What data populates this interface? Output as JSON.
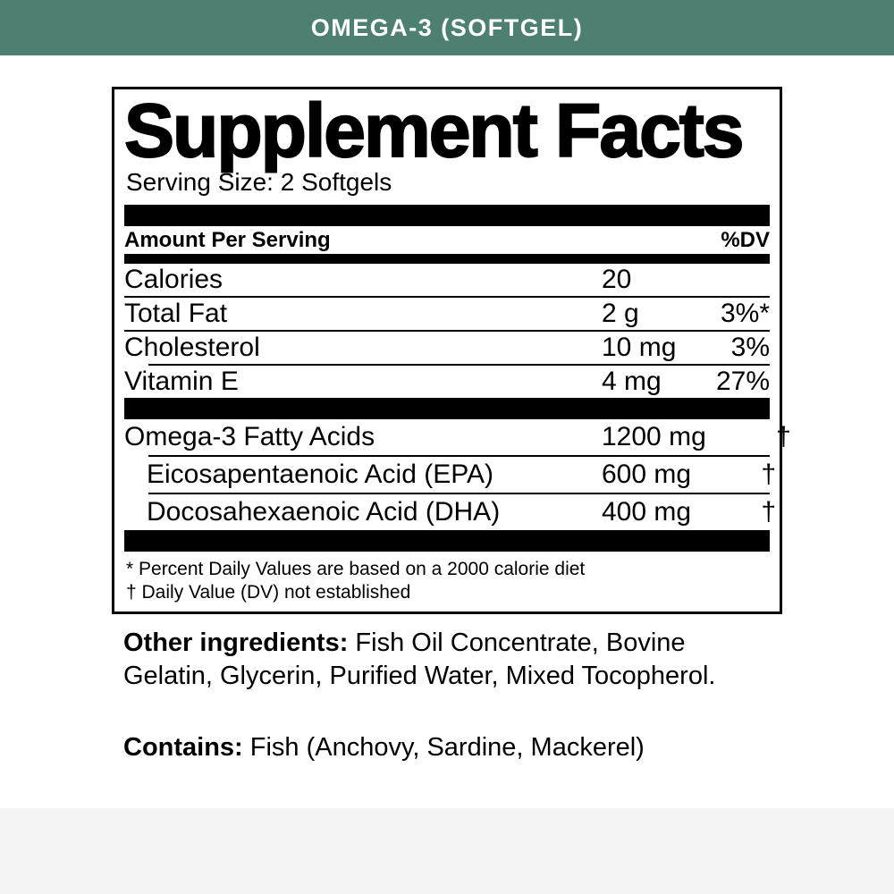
{
  "banner": {
    "title": "OMEGA-3 (SOFTGEL)"
  },
  "colors": {
    "banner_bg": "#4e8071",
    "banner_text": "#ffffff",
    "panel_border": "#000000",
    "footer_bg": "#f4f4f5"
  },
  "panel": {
    "title": "Supplement Facts",
    "serving_size": "Serving Size: 2 Softgels",
    "columns": {
      "amount_label": "Amount Per Serving",
      "dv_label": "%DV"
    },
    "rows": [
      {
        "name": "Calories",
        "amount": "20",
        "dv": ""
      },
      {
        "name": "Total Fat",
        "amount": "2 g",
        "dv": "3%*"
      },
      {
        "name": "Cholesterol",
        "amount": "10 mg",
        "dv": "3%"
      },
      {
        "name": "Vitamin E",
        "amount": "4 mg",
        "dv": "27%"
      },
      {
        "name": "Omega-3 Fatty Acids",
        "amount": "1200 mg",
        "dv": "†"
      },
      {
        "name": "Eicosapentaenoic Acid (EPA)",
        "amount": "600 mg",
        "dv": "†"
      },
      {
        "name": "Docosahexaenoic Acid (DHA)",
        "amount": "400 mg",
        "dv": "†"
      }
    ],
    "footnotes": [
      "* Percent Daily Values are based on a 2000 calorie diet",
      "† Daily Value (DV) not established"
    ]
  },
  "other_ingredients": {
    "label": "Other ingredients:",
    "text": " Fish Oil Concentrate, Bovine Gelatin, Glycerin, Purified Water, Mixed Tocopherol."
  },
  "contains": {
    "label": "Contains:",
    "text": " Fish (Anchovy, Sardine, Mackerel)"
  }
}
